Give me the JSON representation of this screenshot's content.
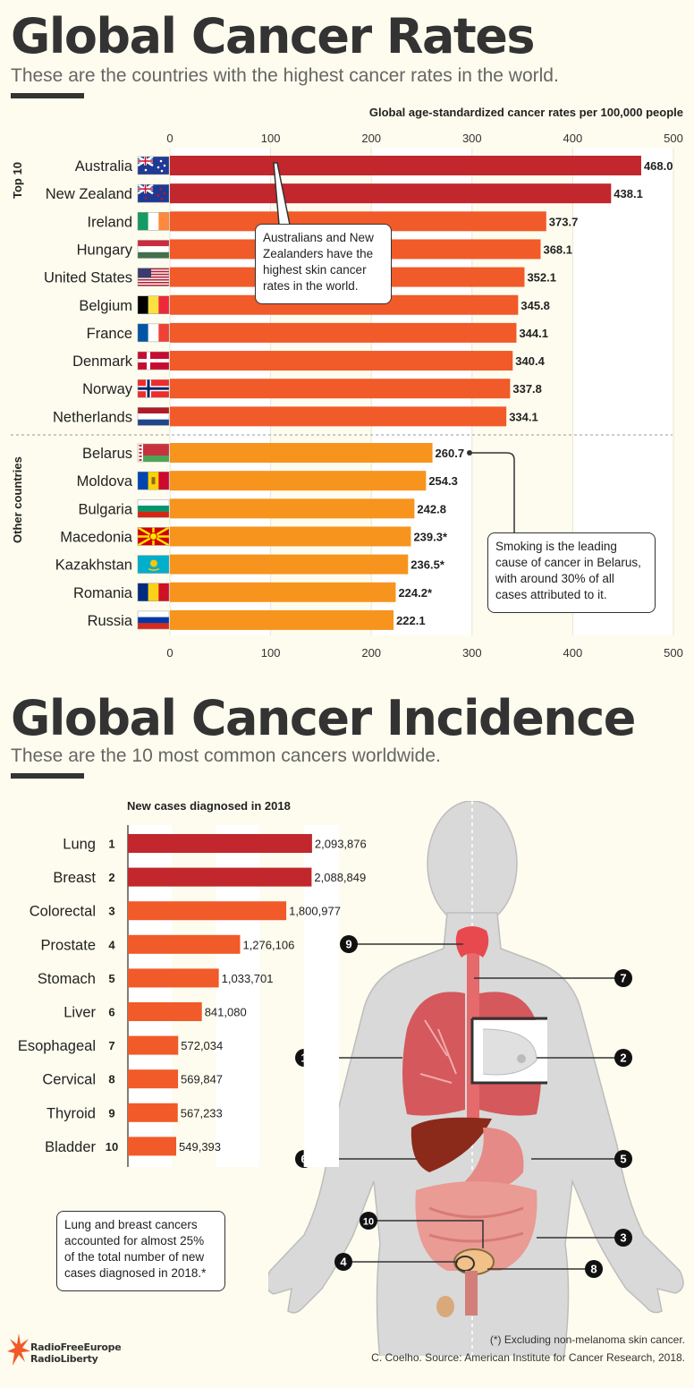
{
  "section1": {
    "title": "Global Cancer Rates",
    "subtitle": "These are the countries with the highest cancer rates in the world.",
    "axis_caption": "Global age-standardized cancer rates per 100,000 people",
    "group_top": "Top 10",
    "group_other": "Other countries",
    "note_skin": "Australians and New Zealanders have the highest skin cancer rates in the world.",
    "note_belarus": "Smoking is the leading cause of cancer in Belarus, with around 30% of all cases attributed to it."
  },
  "section2": {
    "title": "Global Cancer Incidence",
    "subtitle": "These are the 10 most common cancers worldwide.",
    "axis_caption": "New cases diagnosed in 2018",
    "note": "Lung and breast cancers accounted for almost 25% of the total number of new cases diagnosed in 2018.*"
  },
  "footer": {
    "footnote": "(*) Excluding non-melanoma skin cancer.",
    "source": "C. Coelho. Source: American Institute for Cancer Research, 2018.",
    "logo_line1": "RadioFreeEurope",
    "logo_line2": "RadioLiberty"
  },
  "colors": {
    "dark_red": "#c1272d",
    "orange_red": "#f15a29",
    "orange": "#f7941d",
    "text": "#333333",
    "background": "#fdfcee"
  },
  "chart_data": [
    {
      "type": "bar",
      "orientation": "horizontal",
      "title": "Global age-standardized cancer rates per 100,000 people",
      "xlim": [
        0,
        500
      ],
      "ticks": [
        0,
        100,
        200,
        300,
        400,
        500
      ],
      "grid": true,
      "groups": [
        {
          "name": "Top 10",
          "items": [
            {
              "country": "Australia",
              "value": 468.0,
              "label": "468.0",
              "flag": "australia-flag-icon"
            },
            {
              "country": "New Zealand",
              "value": 438.1,
              "label": "438.1",
              "flag": "new-zealand-flag-icon"
            },
            {
              "country": "Ireland",
              "value": 373.7,
              "label": "373.7",
              "flag": "ireland-flag-icon"
            },
            {
              "country": "Hungary",
              "value": 368.1,
              "label": "368.1",
              "flag": "hungary-flag-icon"
            },
            {
              "country": "United States",
              "value": 352.1,
              "label": "352.1",
              "flag": "united-states-flag-icon"
            },
            {
              "country": "Belgium",
              "value": 345.8,
              "label": "345.8",
              "flag": "belgium-flag-icon"
            },
            {
              "country": "France",
              "value": 344.1,
              "label": "344.1",
              "flag": "france-flag-icon"
            },
            {
              "country": "Denmark",
              "value": 340.4,
              "label": "340.4",
              "flag": "denmark-flag-icon"
            },
            {
              "country": "Norway",
              "value": 337.8,
              "label": "337.8",
              "flag": "norway-flag-icon"
            },
            {
              "country": "Netherlands",
              "value": 334.1,
              "label": "334.1",
              "flag": "netherlands-flag-icon"
            }
          ]
        },
        {
          "name": "Other countries",
          "items": [
            {
              "country": "Belarus",
              "value": 260.7,
              "label": "260.7",
              "flag": "belarus-flag-icon"
            },
            {
              "country": "Moldova",
              "value": 254.3,
              "label": "254.3",
              "flag": "moldova-flag-icon"
            },
            {
              "country": "Bulgaria",
              "value": 242.8,
              "label": "242.8",
              "flag": "bulgaria-flag-icon"
            },
            {
              "country": "Macedonia",
              "value": 239.3,
              "label": "239.3*",
              "flag": "macedonia-flag-icon"
            },
            {
              "country": "Kazakhstan",
              "value": 236.5,
              "label": "236.5*",
              "flag": "kazakhstan-flag-icon"
            },
            {
              "country": "Romania",
              "value": 224.2,
              "label": "224.2*",
              "flag": "romania-flag-icon"
            },
            {
              "country": "Russia",
              "value": 222.1,
              "label": "222.1",
              "flag": "russia-flag-icon"
            }
          ]
        }
      ]
    },
    {
      "type": "bar",
      "orientation": "horizontal",
      "title": "New cases diagnosed in 2018",
      "categories": [
        "Lung",
        "Breast",
        "Colorectal",
        "Prostate",
        "Stomach",
        "Liver",
        "Esophageal",
        "Cervical",
        "Thyroid",
        "Bladder"
      ],
      "ranks": [
        "1",
        "2",
        "3",
        "4",
        "5",
        "6",
        "7",
        "8",
        "9",
        "10"
      ],
      "values": [
        2093876,
        2088849,
        1800977,
        1276106,
        1033701,
        841080,
        572034,
        569847,
        567233,
        549393
      ],
      "labels": [
        "2,093,876",
        "2,088,849",
        "1,800,977",
        "1,276,106",
        "1,033,701",
        "841,080",
        "572,034",
        "569,847",
        "567,233",
        "549,393"
      ],
      "xlim": [
        0,
        2400000
      ]
    }
  ]
}
